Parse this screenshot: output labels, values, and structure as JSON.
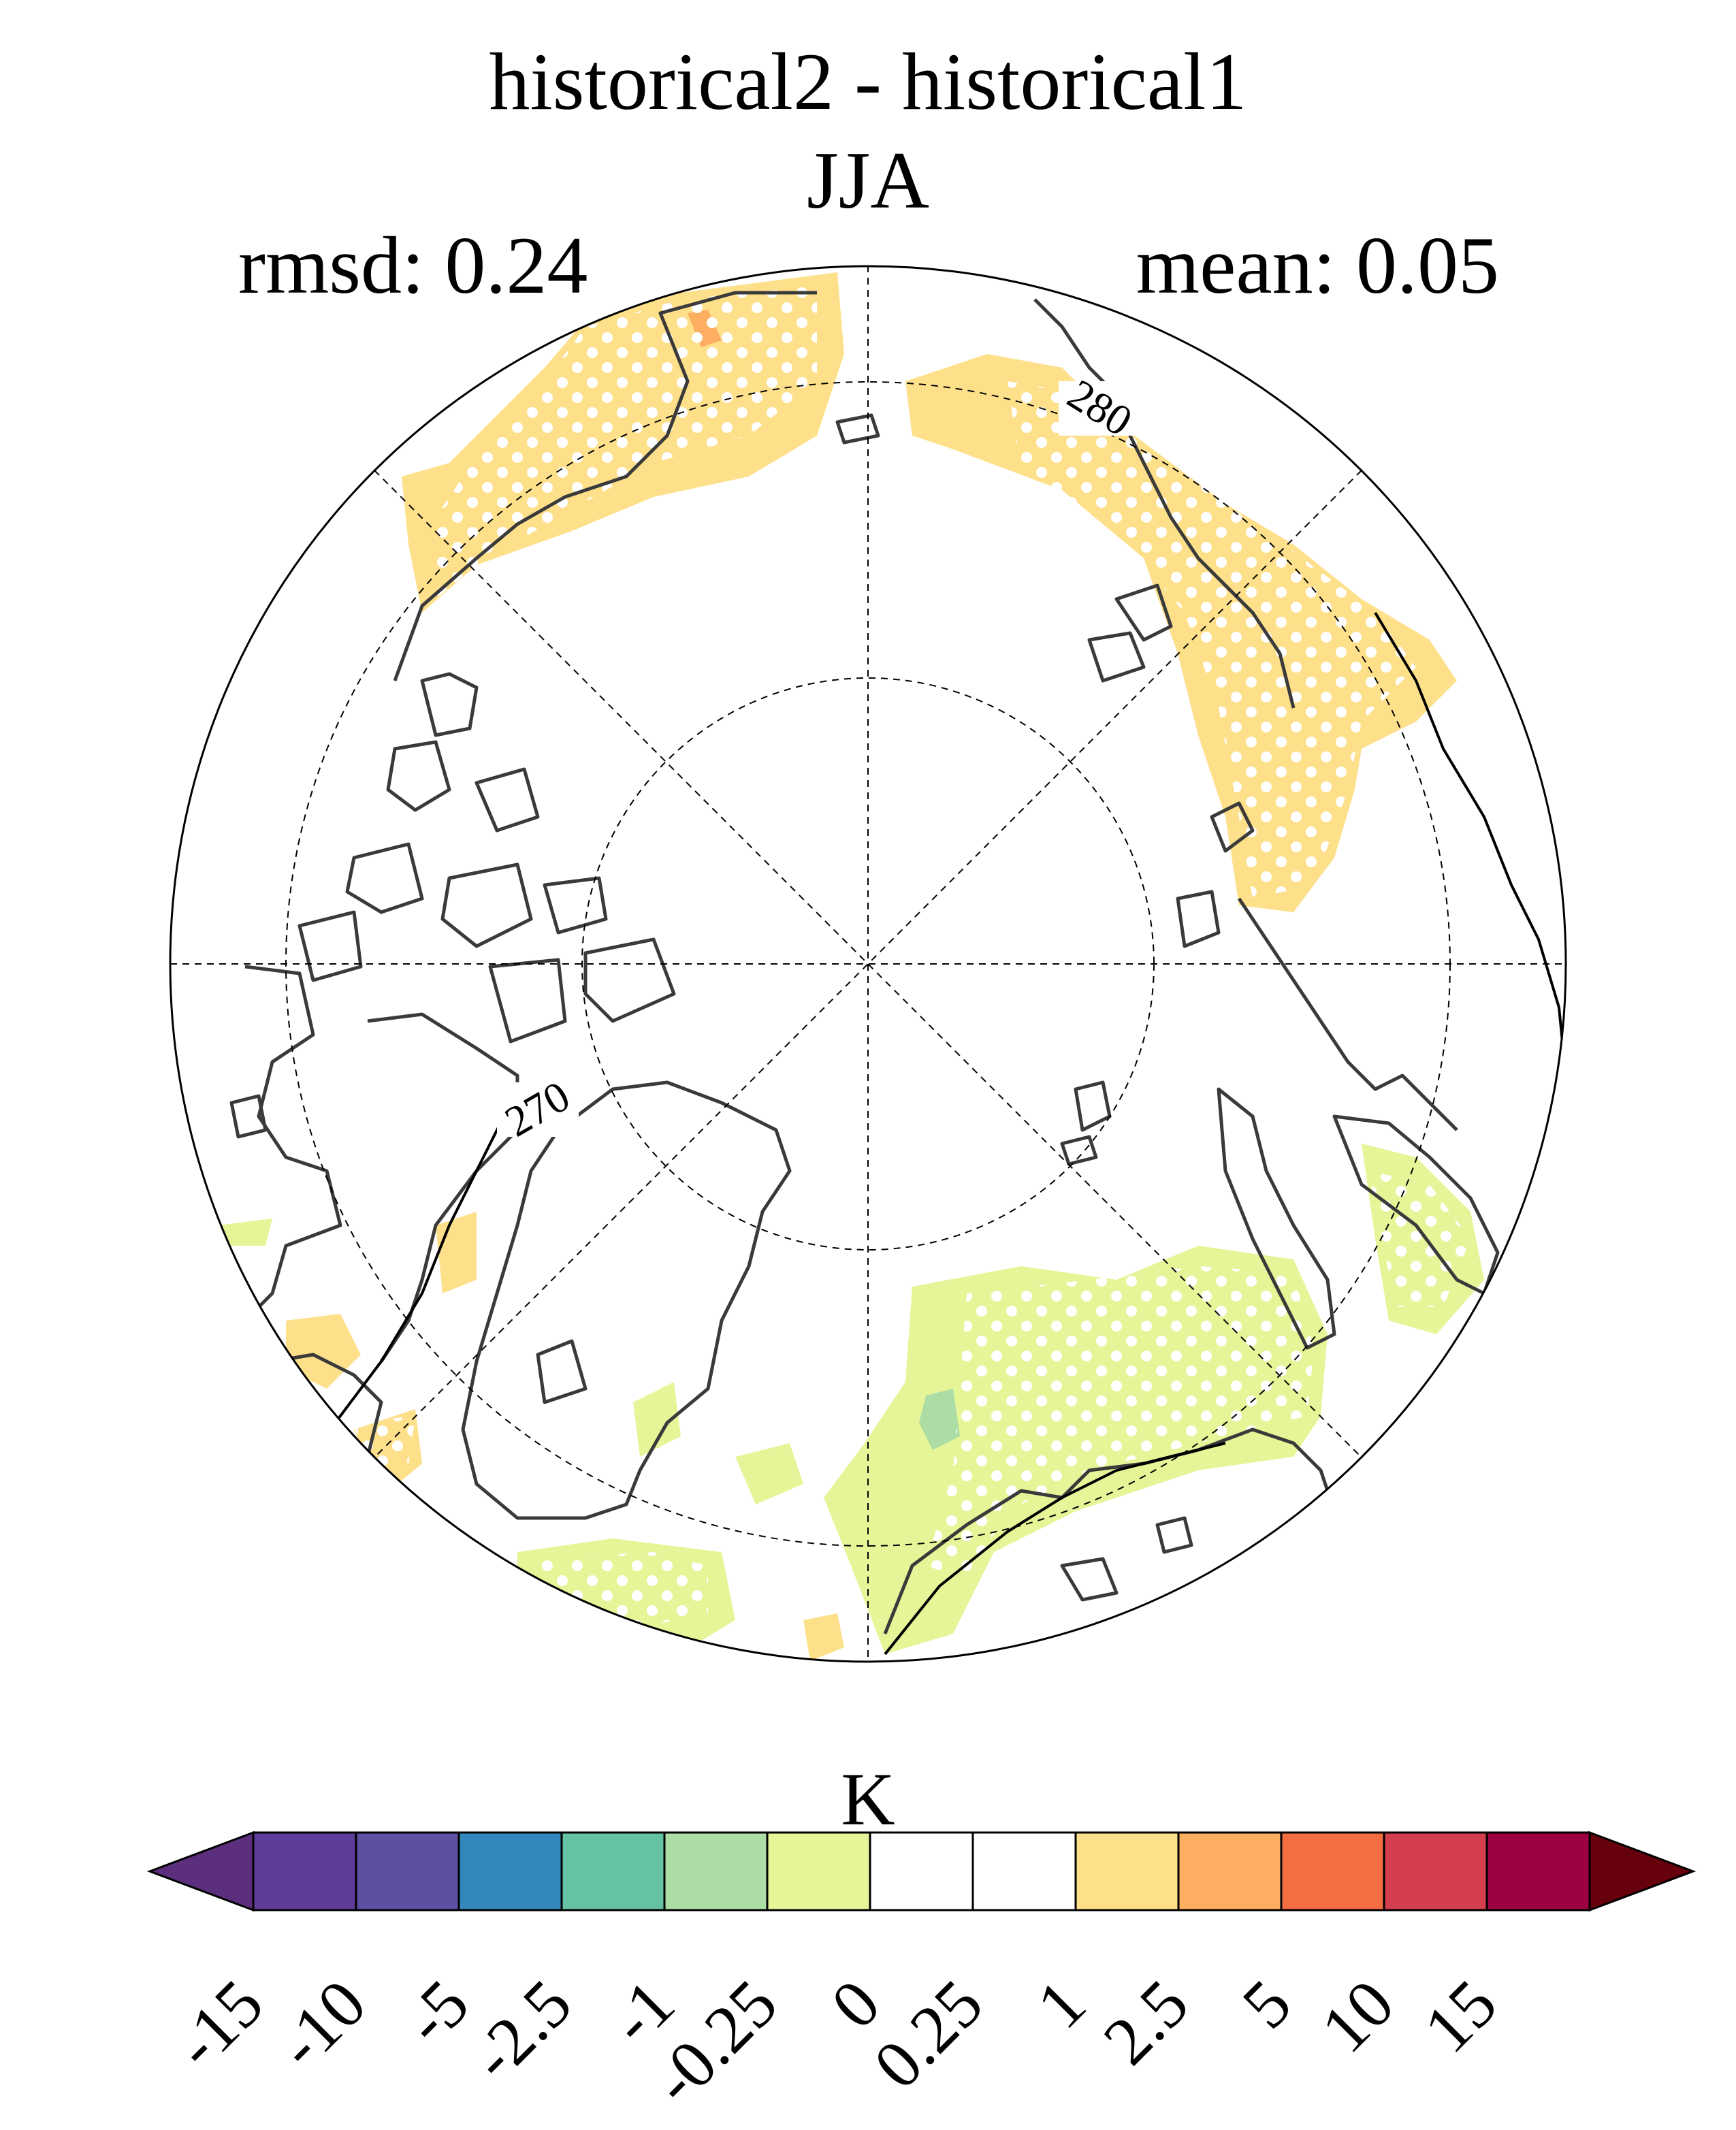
{
  "title": "historical2 - historical1",
  "season": "JJA",
  "rmsd_text": "rmsd: 0.24",
  "mean_text": "mean: 0.05",
  "contour_labels": [
    "270",
    "280"
  ],
  "colorbar": {
    "unit": "K",
    "levels": [
      "-15",
      "-10",
      "-5",
      "-2.5",
      "-1",
      "-0.25",
      "0",
      "0.25",
      "1",
      "2.5",
      "5",
      "10",
      "15"
    ],
    "colors": [
      "#5e3c99",
      "#5e4fa2",
      "#3288bd",
      "#66c2a5",
      "#abdda4",
      "#e6f598",
      "#ffffff",
      "#ffffff",
      "#fee08b",
      "#fdae61",
      "#f46d43",
      "#d53e4f",
      "#9e0142"
    ],
    "under_color": "#5b2f7e",
    "over_color": "#67000d"
  },
  "fill_colors": {
    "warm_small": "#fee08b",
    "warm_mid": "#fdae61",
    "cool_small": "#e6f598",
    "cool_mid": "#abdda4"
  },
  "map_style": {
    "projection": "north polar stereographic",
    "graticule": "dashed",
    "coastline_color": "#3a3a3a",
    "stippling": "white dots over significant areas"
  }
}
